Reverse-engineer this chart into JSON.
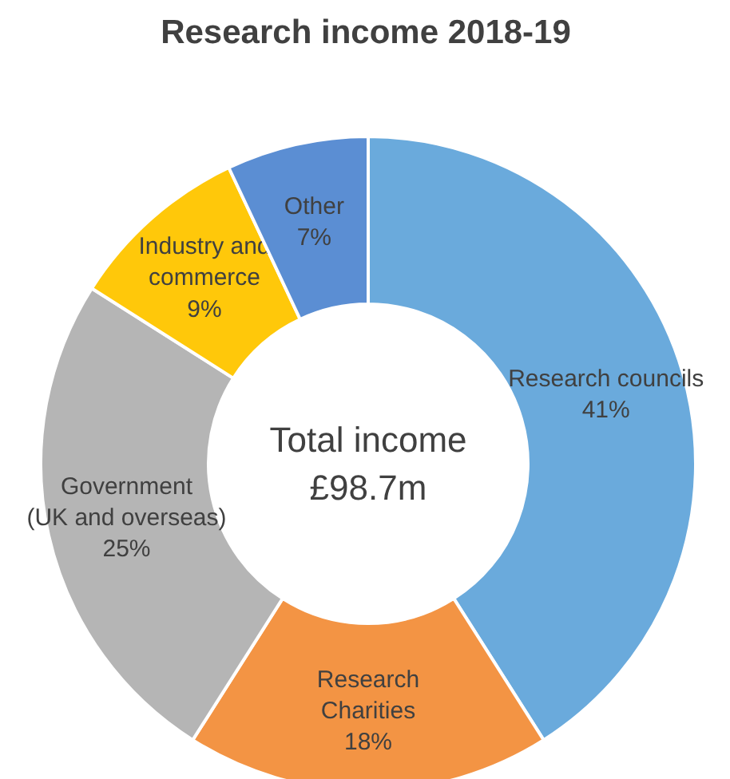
{
  "chart_data": {
    "type": "donut",
    "title": "Research income 2018-19",
    "categories": [
      "Research councils",
      "Research\nCharities",
      "Government\n(UK and overseas)",
      "Industry and\ncommerce",
      "Other"
    ],
    "values": [
      41,
      18,
      25,
      9,
      7
    ],
    "value_labels": [
      "41%",
      "18%",
      "25%",
      "9%",
      "7%"
    ],
    "colors": [
      "#6aaadc",
      "#f39444",
      "#b5b5b5",
      "#ffc80a",
      "#5b8ed3"
    ],
    "annotations": [
      "Total income\n£98.7m"
    ],
    "legend": false
  }
}
